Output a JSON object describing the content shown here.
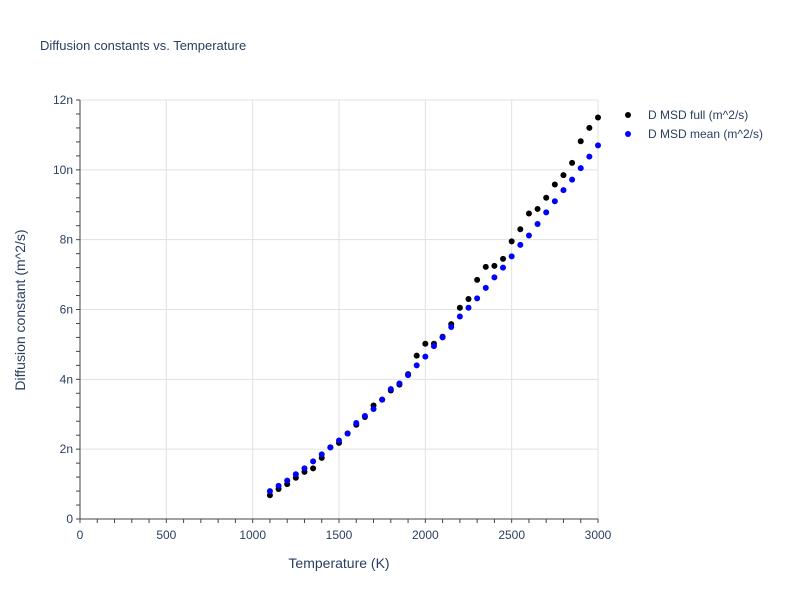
{
  "chart_data": {
    "type": "scatter",
    "title": "Diffusion constants vs. Temperature",
    "xlabel": "Temperature (K)",
    "ylabel": "Diffusion constant (m^2/s)",
    "xlim": [
      0,
      3000
    ],
    "ylim": [
      0,
      12
    ],
    "x_ticks": [
      0,
      500,
      1000,
      1500,
      2000,
      2500,
      3000
    ],
    "x_tick_labels": [
      "0",
      "500",
      "1000",
      "1500",
      "2000",
      "2500",
      "3000"
    ],
    "y_ticks": [
      0,
      2,
      4,
      6,
      8,
      10,
      12
    ],
    "y_tick_labels": [
      "0",
      "2n",
      "4n",
      "6n",
      "8n",
      "10n",
      "12n"
    ],
    "grid": true,
    "legend_position": "top-right",
    "series": [
      {
        "name": "D MSD full (m^2/s)",
        "color": "#000000",
        "x": [
          1100,
          1150,
          1200,
          1250,
          1300,
          1350,
          1400,
          1450,
          1500,
          1550,
          1600,
          1650,
          1700,
          1750,
          1800,
          1850,
          1900,
          1950,
          2000,
          2050,
          2100,
          2150,
          2200,
          2250,
          2300,
          2350,
          2400,
          2450,
          2500,
          2550,
          2600,
          2650,
          2700,
          2750,
          2800,
          2850,
          2900,
          2950,
          3000
        ],
        "y": [
          0.68,
          0.86,
          1.0,
          1.18,
          1.35,
          1.45,
          1.75,
          2.05,
          2.18,
          2.45,
          2.7,
          2.92,
          3.25,
          3.42,
          3.68,
          3.85,
          4.15,
          4.68,
          5.02,
          5.02,
          5.22,
          5.58,
          6.05,
          6.3,
          6.85,
          7.22,
          7.25,
          7.45,
          7.95,
          8.3,
          8.75,
          8.88,
          9.2,
          9.58,
          9.85,
          10.2,
          10.82,
          11.2,
          11.5
        ]
      },
      {
        "name": "D MSD mean (m^2/s)",
        "color": "#0000ff",
        "x": [
          1100,
          1150,
          1200,
          1250,
          1300,
          1350,
          1400,
          1450,
          1500,
          1550,
          1600,
          1650,
          1700,
          1750,
          1800,
          1850,
          1900,
          1950,
          2000,
          2050,
          2100,
          2150,
          2200,
          2250,
          2300,
          2350,
          2400,
          2450,
          2500,
          2550,
          2600,
          2650,
          2700,
          2750,
          2800,
          2850,
          2900,
          2950,
          3000
        ],
        "y": [
          0.8,
          0.95,
          1.1,
          1.28,
          1.45,
          1.65,
          1.85,
          2.05,
          2.25,
          2.45,
          2.75,
          2.95,
          3.15,
          3.42,
          3.72,
          3.88,
          4.12,
          4.4,
          4.65,
          4.95,
          5.2,
          5.5,
          5.8,
          6.05,
          6.32,
          6.62,
          6.92,
          7.2,
          7.52,
          7.85,
          8.12,
          8.45,
          8.78,
          9.1,
          9.42,
          9.72,
          10.05,
          10.38,
          10.7
        ]
      }
    ]
  }
}
